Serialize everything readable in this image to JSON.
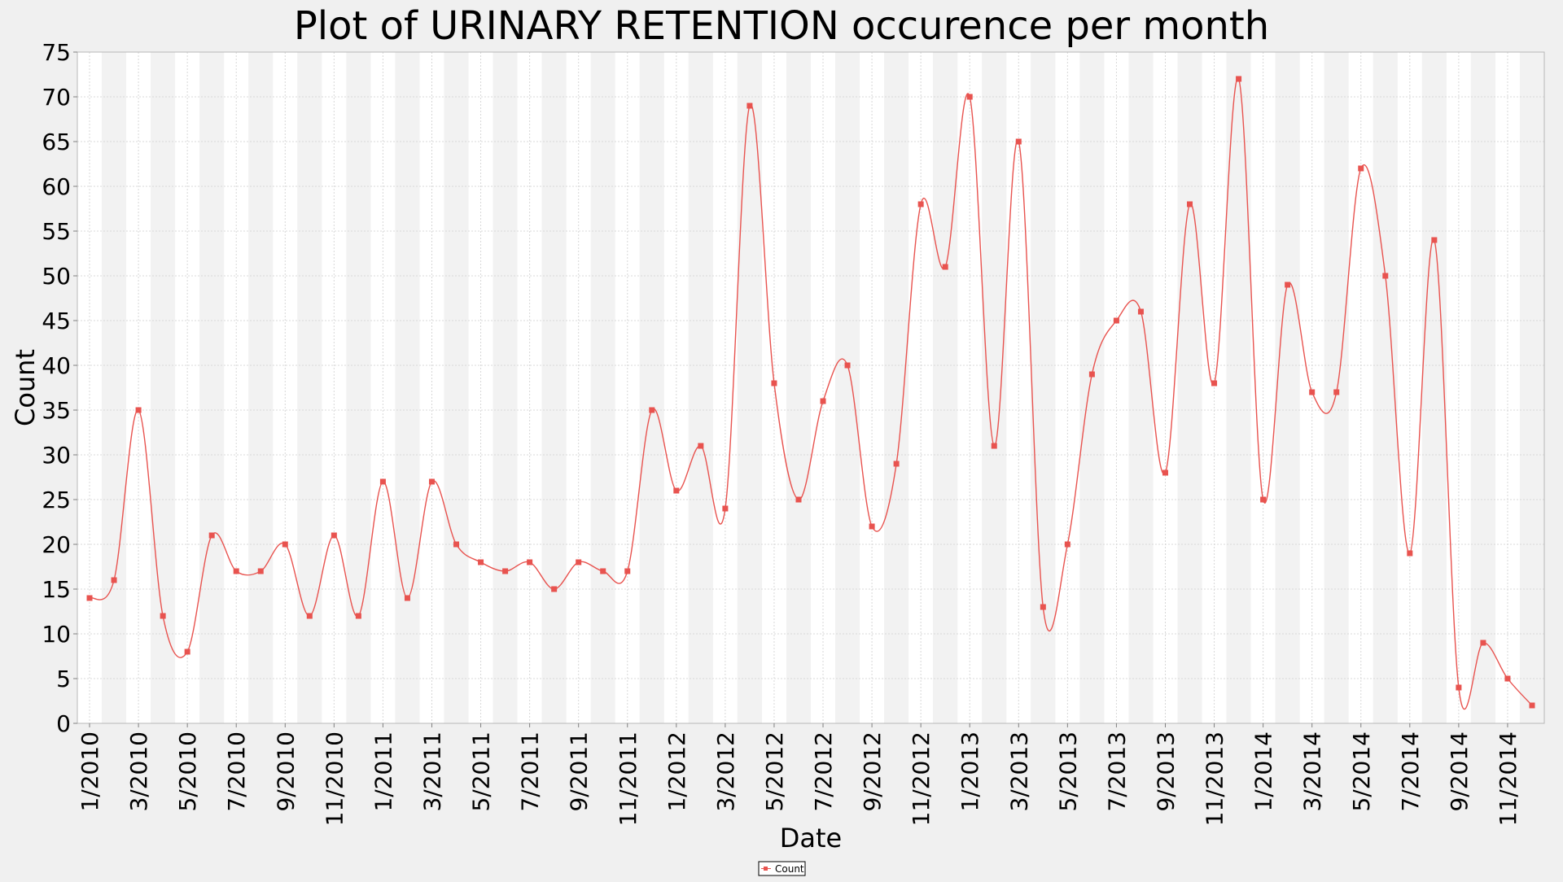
{
  "chart_data": {
    "type": "line",
    "title": "Plot of URINARY RETENTION occurence per month",
    "xlabel": "Date",
    "ylabel": "Count",
    "ylim": [
      0,
      75
    ],
    "yticks": [
      0,
      5,
      10,
      15,
      20,
      25,
      30,
      35,
      40,
      45,
      50,
      55,
      60,
      65,
      70,
      75
    ],
    "grid": true,
    "legend_position": "bottom-center",
    "x_tick_labels": [
      "1/2010",
      "3/2010",
      "5/2010",
      "7/2010",
      "9/2010",
      "11/2010",
      "1/2011",
      "3/2011",
      "5/2011",
      "7/2011",
      "9/2011",
      "11/2011",
      "1/2012",
      "3/2012",
      "5/2012",
      "7/2012",
      "9/2012",
      "11/2012",
      "1/2013",
      "3/2013",
      "5/2013",
      "7/2013",
      "9/2013",
      "11/2013",
      "1/2014",
      "3/2014",
      "5/2014",
      "7/2014",
      "9/2014",
      "11/2014"
    ],
    "x": [
      "1/2010",
      "2/2010",
      "3/2010",
      "4/2010",
      "5/2010",
      "6/2010",
      "7/2010",
      "8/2010",
      "9/2010",
      "10/2010",
      "11/2010",
      "12/2010",
      "1/2011",
      "2/2011",
      "3/2011",
      "4/2011",
      "5/2011",
      "6/2011",
      "7/2011",
      "8/2011",
      "9/2011",
      "10/2011",
      "11/2011",
      "12/2011",
      "1/2012",
      "2/2012",
      "3/2012",
      "4/2012",
      "5/2012",
      "6/2012",
      "7/2012",
      "8/2012",
      "9/2012",
      "10/2012",
      "11/2012",
      "12/2012",
      "1/2013",
      "2/2013",
      "3/2013",
      "4/2013",
      "5/2013",
      "6/2013",
      "7/2013",
      "8/2013",
      "9/2013",
      "10/2013",
      "11/2013",
      "12/2013",
      "1/2014",
      "2/2014",
      "3/2014",
      "4/2014",
      "5/2014",
      "6/2014",
      "7/2014",
      "8/2014",
      "9/2014",
      "10/2014",
      "11/2014",
      "12/2014"
    ],
    "series": [
      {
        "name": "Count",
        "color": "#e8534f",
        "values": [
          14,
          16,
          35,
          12,
          8,
          21,
          17,
          17,
          20,
          12,
          21,
          12,
          27,
          14,
          27,
          20,
          18,
          17,
          18,
          15,
          18,
          17,
          17,
          35,
          26,
          31,
          24,
          69,
          38,
          25,
          36,
          40,
          22,
          29,
          58,
          51,
          70,
          31,
          65,
          13,
          20,
          39,
          45,
          46,
          28,
          58,
          38,
          72,
          25,
          49,
          37,
          37,
          62,
          50,
          19,
          54,
          4,
          9,
          5,
          2
        ]
      }
    ]
  }
}
